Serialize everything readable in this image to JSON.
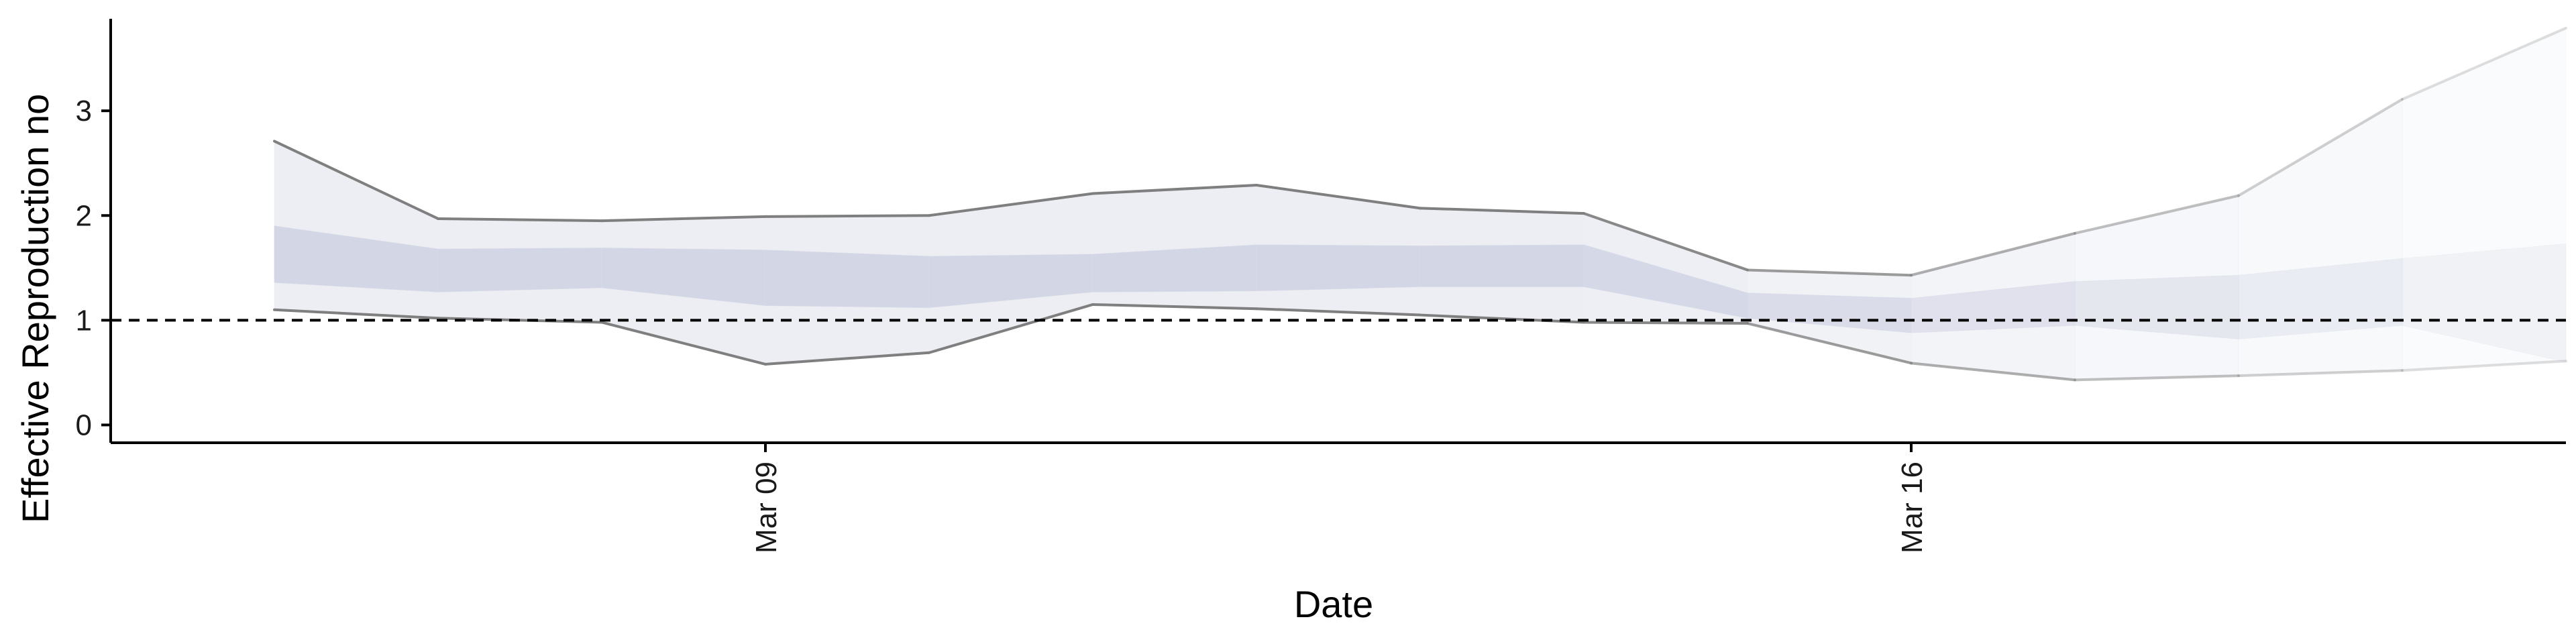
{
  "chart_data": {
    "type": "area",
    "xlabel": "Date",
    "ylabel": "Effective Reproduction no",
    "x": [
      "2020-03-06",
      "2020-03-07",
      "2020-03-08",
      "2020-03-09",
      "2020-03-10",
      "2020-03-11",
      "2020-03-12",
      "2020-03-13",
      "2020-03-14",
      "2020-03-15",
      "2020-03-16",
      "2020-03-17",
      "2020-03-18",
      "2020-03-19",
      "2020-03-20"
    ],
    "x_ticks": [
      {
        "date": "2020-03-09",
        "label": "Mar 09"
      },
      {
        "date": "2020-03-16",
        "label": "Mar 16"
      }
    ],
    "xlim": [
      "2020-03-05",
      "2020-03-20"
    ],
    "y_ticks": [
      0,
      1,
      2,
      3
    ],
    "ylim": [
      -0.17,
      3.93
    ],
    "reference_line": {
      "y": 1,
      "style": "dashed"
    },
    "series": [
      {
        "role": "upper_outer",
        "values": [
          2.71,
          1.97,
          1.95,
          1.99,
          2.0,
          2.21,
          2.29,
          2.07,
          2.02,
          1.48,
          1.43,
          1.83,
          2.19,
          3.11,
          3.79
        ]
      },
      {
        "role": "upper_inner",
        "values": [
          1.9,
          1.68,
          1.69,
          1.67,
          1.61,
          1.63,
          1.72,
          1.71,
          1.72,
          1.26,
          1.21,
          1.37,
          1.43,
          1.59,
          1.73
        ]
      },
      {
        "role": "lower_inner",
        "values": [
          1.36,
          1.27,
          1.31,
          1.14,
          1.12,
          1.27,
          1.28,
          1.32,
          1.32,
          1.02,
          0.88,
          0.95,
          0.82,
          0.95,
          0.6
        ]
      },
      {
        "role": "lower_outer",
        "values": [
          1.1,
          1.02,
          0.98,
          0.58,
          0.69,
          1.15,
          1.11,
          1.05,
          0.98,
          0.97,
          0.59,
          0.43,
          0.47,
          0.52,
          0.61
        ]
      }
    ],
    "band_opacity": [
      1.0,
      1.0,
      1.0,
      1.0,
      1.0,
      1.0,
      1.0,
      1.0,
      1.0,
      0.85,
      0.7,
      0.55,
      0.42,
      0.3,
      0.2
    ],
    "colors": {
      "inner_band": "#d3d6e5",
      "outer_band": "#eceef4",
      "bound_line": "#7f7f7f",
      "axis": "#000000"
    },
    "grid": false,
    "legend": "none"
  }
}
